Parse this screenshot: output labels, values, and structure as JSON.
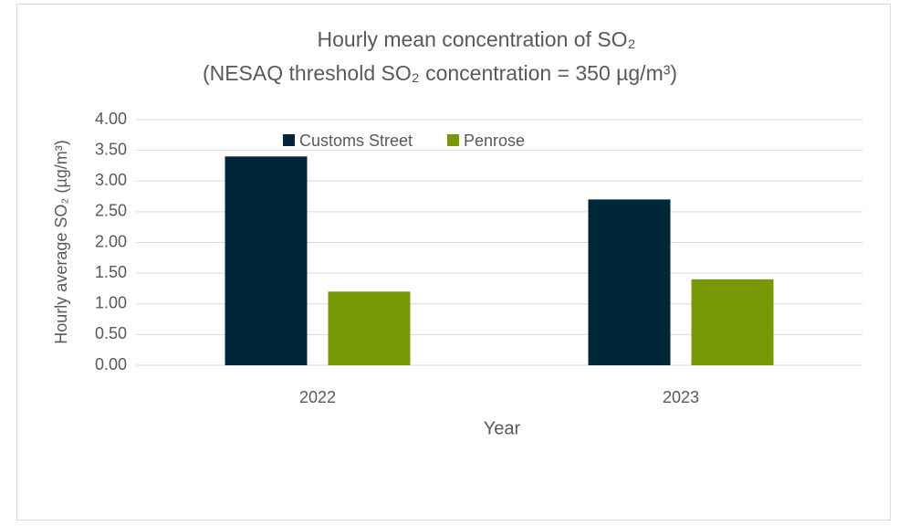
{
  "chart_data": {
    "type": "bar",
    "title": "Hourly mean concentration of SO₂",
    "subtitle": "(NESAQ threshold SO₂ concentration = 350 µg/m³)",
    "x_label": "Year",
    "y_label": "Hourly average SO₂ (µg/m³)",
    "categories": [
      "2022",
      "2023"
    ],
    "series": [
      {
        "name": "Customs Street",
        "color": "#00263a",
        "values": [
          3.4,
          2.7
        ]
      },
      {
        "name": "Penrose",
        "color": "#789904",
        "values": [
          1.2,
          1.4
        ]
      }
    ],
    "ylim": [
      0,
      4
    ],
    "yticks": [
      {
        "value": 0,
        "label": "0.00"
      },
      {
        "value": 0.5,
        "label": "0.50"
      },
      {
        "value": 1,
        "label": "1.00"
      },
      {
        "value": 1.5,
        "label": "1.50"
      },
      {
        "value": 2,
        "label": "2.00"
      },
      {
        "value": 2.5,
        "label": "2.50"
      },
      {
        "value": 3,
        "label": "3.00"
      },
      {
        "value": 3.5,
        "label": "3.50"
      },
      {
        "value": 4,
        "label": "4.00"
      }
    ],
    "grid": true,
    "legend": "top"
  }
}
